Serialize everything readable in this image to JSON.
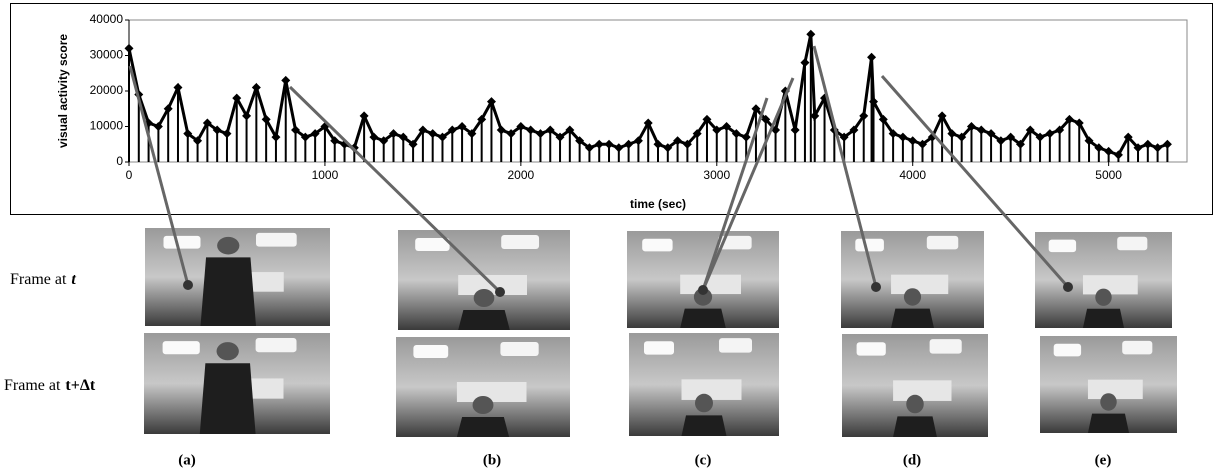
{
  "chart_data": {
    "type": "line",
    "x_label": "time (sec)",
    "y_label": "visual activity score",
    "color": "#000000",
    "marker": "diamond",
    "xlim": [
      0,
      5400
    ],
    "ylim": [
      0,
      40000
    ],
    "xticks": [
      0,
      1000,
      2000,
      3000,
      4000,
      5000
    ],
    "yticks": [
      0,
      10000,
      20000,
      30000,
      40000
    ],
    "x": [
      0,
      50,
      100,
      150,
      200,
      250,
      300,
      350,
      400,
      450,
      500,
      550,
      600,
      650,
      700,
      750,
      800,
      850,
      900,
      950,
      1000,
      1050,
      1100,
      1150,
      1200,
      1250,
      1300,
      1350,
      1400,
      1450,
      1500,
      1550,
      1600,
      1650,
      1700,
      1750,
      1800,
      1850,
      1900,
      1950,
      2000,
      2050,
      2100,
      2150,
      2200,
      2250,
      2300,
      2350,
      2400,
      2450,
      2500,
      2550,
      2600,
      2650,
      2700,
      2750,
      2800,
      2850,
      2900,
      2950,
      3000,
      3050,
      3100,
      3150,
      3200,
      3250,
      3300,
      3350,
      3400,
      3450,
      3480,
      3500,
      3550,
      3600,
      3650,
      3700,
      3750,
      3790,
      3800,
      3850,
      3900,
      3950,
      4000,
      4050,
      4100,
      4150,
      4200,
      4250,
      4300,
      4350,
      4400,
      4450,
      4500,
      4550,
      4600,
      4650,
      4700,
      4750,
      4800,
      4850,
      4900,
      4950,
      5000,
      5050,
      5100,
      5150,
      5200,
      5250,
      5300
    ],
    "values": [
      32000,
      19000,
      11000,
      10000,
      15000,
      21000,
      8000,
      6000,
      11000,
      9000,
      8000,
      18000,
      13000,
      21000,
      12000,
      7000,
      23000,
      9000,
      7000,
      8000,
      10000,
      6000,
      5000,
      4000,
      13000,
      7000,
      6000,
      8000,
      7000,
      5000,
      9000,
      8000,
      7000,
      9000,
      10000,
      8000,
      12000,
      17000,
      9000,
      8000,
      10000,
      9000,
      8000,
      9000,
      7000,
      9000,
      6000,
      4000,
      5000,
      5000,
      4000,
      5000,
      6000,
      11000,
      5000,
      4000,
      6000,
      5000,
      8000,
      12000,
      9000,
      10000,
      8000,
      7000,
      15000,
      12000,
      9000,
      20000,
      9000,
      28000,
      36000,
      13000,
      18000,
      9000,
      7000,
      9000,
      13000,
      29500,
      17000,
      12000,
      8000,
      7000,
      6000,
      5000,
      7000,
      13000,
      8000,
      7000,
      10000,
      9000,
      8000,
      6000,
      7000,
      5000,
      9000,
      7000,
      8000,
      9000,
      12000,
      11000,
      6000,
      4000,
      3000,
      2000,
      7000,
      4000,
      5000,
      4000,
      5000
    ]
  },
  "frames": {
    "row_labels": [
      {
        "text": "Frame at",
        "var": "t"
      },
      {
        "text": "Frame at",
        "var": "t+Δt"
      }
    ],
    "panel_labels": [
      "(a)",
      "(b)",
      "(c)",
      "(d)",
      "(e)"
    ]
  }
}
